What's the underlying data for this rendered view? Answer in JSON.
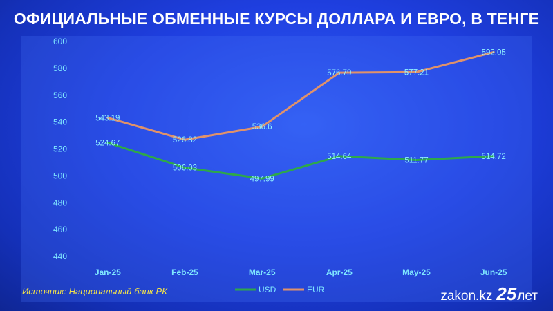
{
  "title": "ОФИЦИАЛЬНЫЕ ОБМЕННЫЕ КУРСЫ ДОЛЛАРА И ЕВРО, В ТЕНГЕ",
  "source": "Источник: Национальный банк РК",
  "brand": {
    "site": "zakon.kz",
    "anniversary": "25",
    "years_word": "лет"
  },
  "colors": {
    "usd": "#2ea84a",
    "eur": "#e0926a",
    "text": "#7fe7ff"
  },
  "chart_data": {
    "type": "line",
    "title": "ОФИЦИАЛЬНЫЕ ОБМЕННЫЕ КУРСЫ ДОЛЛАРА И ЕВРО, В ТЕНГЕ",
    "categories": [
      "Jan-25",
      "Feb-25",
      "Mar-25",
      "Apr-25",
      "May-25",
      "Jun-25"
    ],
    "series": [
      {
        "name": "USD",
        "values": [
          524.67,
          506.03,
          497.99,
          514.64,
          511.77,
          514.72
        ]
      },
      {
        "name": "EUR",
        "values": [
          543.19,
          526.82,
          536.6,
          576.79,
          577.21,
          592.05
        ]
      }
    ],
    "ylim": [
      440,
      600
    ],
    "yticks": [
      440,
      460,
      480,
      500,
      520,
      540,
      560,
      580,
      600
    ],
    "xlabel": "",
    "ylabel": "",
    "grid": false,
    "legend": "bottom",
    "data_labels": true
  }
}
